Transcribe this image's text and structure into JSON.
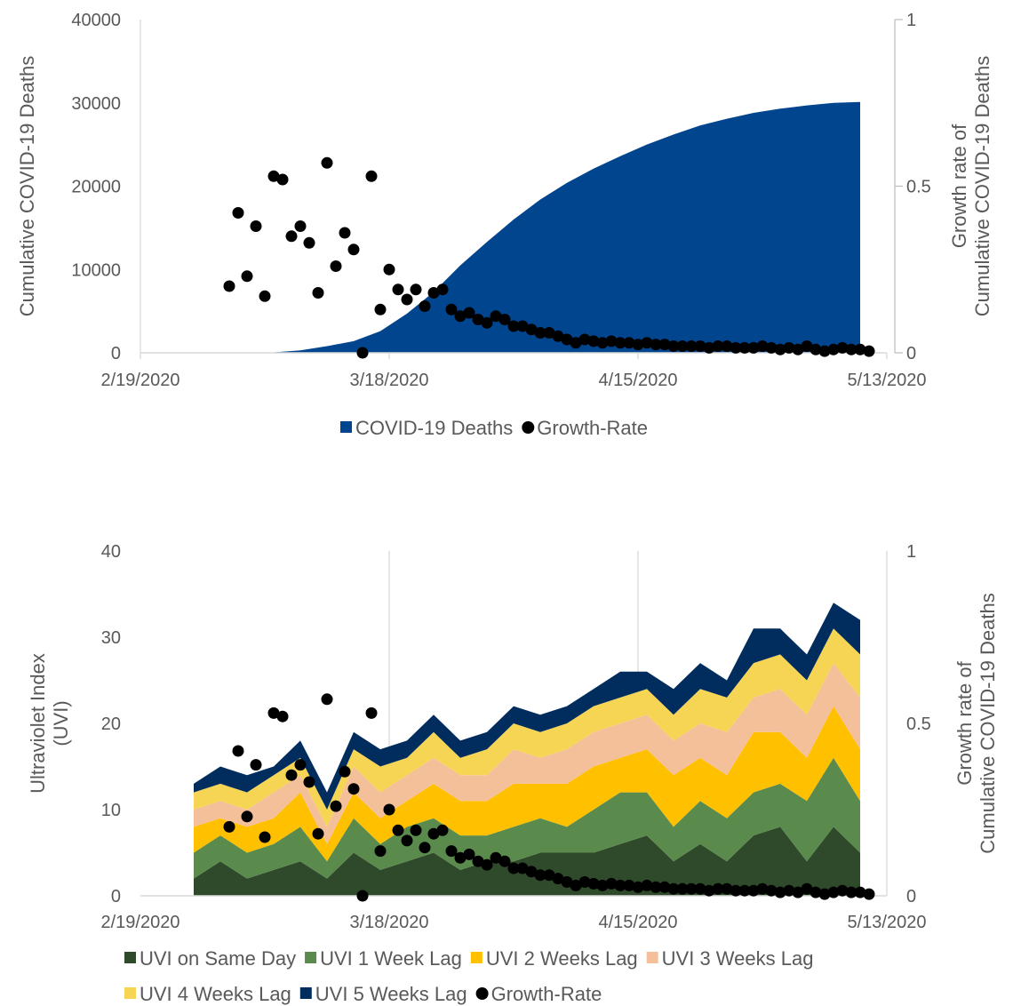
{
  "charts": [
    {
      "type": "area",
      "x_ticks": [
        "2/19/2020",
        "3/18/2020",
        "4/15/2020",
        "5/13/2020"
      ],
      "y_left_ticks": [
        "0",
        "10000",
        "20000",
        "30000",
        "40000"
      ],
      "y_right_ticks": [
        "0",
        "0.5",
        "1"
      ],
      "ylabel_left": "Cumulative COVID-19 Deaths",
      "ylabel_right": [
        "Growth rate of",
        "Cumulative COVID-19 Deaths"
      ],
      "legend": [
        {
          "label": "COVID-19 Deaths",
          "marker": "square",
          "color": "#00458e"
        },
        {
          "label": "Growth-Rate",
          "marker": "circle",
          "color": "#000000"
        }
      ]
    },
    {
      "type": "area",
      "x_ticks": [
        "2/19/2020",
        "3/18/2020",
        "4/15/2020",
        "5/13/2020"
      ],
      "y_left_ticks": [
        "0",
        "10",
        "20",
        "30",
        "40"
      ],
      "y_right_ticks": [
        "0",
        "0.5",
        "1"
      ],
      "ylabel_left": [
        "Ultraviolet Index",
        "(UVI)"
      ],
      "ylabel_right": [
        "Growth rate of",
        "Cumulative COVID-19 Deaths"
      ],
      "legend": [
        {
          "label": "UVI on Same Day",
          "marker": "square",
          "color": "#2f4a2a"
        },
        {
          "label": "UVI 1 Week Lag",
          "marker": "square",
          "color": "#5a8a4c"
        },
        {
          "label": "UVI 2 Weeks Lag",
          "marker": "square",
          "color": "#ffc000"
        },
        {
          "label": "UVI 3 Weeks Lag",
          "marker": "square",
          "color": "#f4c09a"
        },
        {
          "label": "UVI 4 Weeks Lag",
          "marker": "square",
          "color": "#f6d555"
        },
        {
          "label": "UVI 5 Weeks Lag",
          "marker": "square",
          "color": "#002d5e"
        },
        {
          "label": "Growth-Rate",
          "marker": "circle",
          "color": "#000000"
        }
      ]
    }
  ],
  "chart_data": [
    {
      "type": "area",
      "x_range": [
        "2020-02-19",
        "2020-05-13"
      ],
      "ylim_left": [
        0,
        40000
      ],
      "ylim_right": [
        0,
        1
      ],
      "grid": false,
      "legend_position": "bottom",
      "series": [
        {
          "name": "COVID-19 Deaths",
          "type": "area",
          "axis": "left",
          "color": "#00458e",
          "x": [
            "2020-02-29",
            "2020-03-05",
            "2020-03-08",
            "2020-03-11",
            "2020-03-14",
            "2020-03-17",
            "2020-03-20",
            "2020-03-23",
            "2020-03-26",
            "2020-03-29",
            "2020-04-01",
            "2020-04-04",
            "2020-04-07",
            "2020-04-10",
            "2020-04-13",
            "2020-04-16",
            "2020-04-19",
            "2020-04-22",
            "2020-04-25",
            "2020-04-28",
            "2020-05-01",
            "2020-05-04",
            "2020-05-07",
            "2020-05-10"
          ],
          "values": [
            0,
            50,
            300,
            800,
            1400,
            2600,
            4700,
            7300,
            10500,
            13300,
            16000,
            18400,
            20400,
            22100,
            23600,
            25000,
            26200,
            27300,
            28100,
            28800,
            29300,
            29700,
            30000,
            30100
          ]
        },
        {
          "name": "Growth-Rate",
          "type": "scatter",
          "axis": "right",
          "color": "#000000",
          "x": [
            "2020-02-29",
            "2020-03-01",
            "2020-03-02",
            "2020-03-03",
            "2020-03-04",
            "2020-03-05",
            "2020-03-06",
            "2020-03-07",
            "2020-03-08",
            "2020-03-09",
            "2020-03-10",
            "2020-03-11",
            "2020-03-12",
            "2020-03-13",
            "2020-03-14",
            "2020-03-15",
            "2020-03-16",
            "2020-03-17",
            "2020-03-18",
            "2020-03-19",
            "2020-03-20",
            "2020-03-21",
            "2020-03-22",
            "2020-03-23",
            "2020-03-24",
            "2020-03-25",
            "2020-03-26",
            "2020-03-27",
            "2020-03-28",
            "2020-03-29",
            "2020-03-30",
            "2020-03-31",
            "2020-04-01",
            "2020-04-02",
            "2020-04-03",
            "2020-04-04",
            "2020-04-05",
            "2020-04-06",
            "2020-04-07",
            "2020-04-08",
            "2020-04-09",
            "2020-04-10",
            "2020-04-11",
            "2020-04-12",
            "2020-04-13",
            "2020-04-14",
            "2020-04-15",
            "2020-04-16",
            "2020-04-17",
            "2020-04-18",
            "2020-04-19",
            "2020-04-20",
            "2020-04-21",
            "2020-04-22",
            "2020-04-23",
            "2020-04-24",
            "2020-04-25",
            "2020-04-26",
            "2020-04-27",
            "2020-04-28",
            "2020-04-29",
            "2020-04-30",
            "2020-05-01",
            "2020-05-02",
            "2020-05-03",
            "2020-05-04",
            "2020-05-05",
            "2020-05-06",
            "2020-05-07",
            "2020-05-08",
            "2020-05-09",
            "2020-05-10",
            "2020-05-11"
          ],
          "values": [
            0.2,
            0.42,
            0.23,
            0.38,
            0.17,
            0.53,
            0.52,
            0.35,
            0.38,
            0.33,
            0.18,
            0.57,
            0.26,
            0.36,
            0.31,
            0.0,
            0.53,
            0.13,
            0.25,
            0.19,
            0.16,
            0.19,
            0.14,
            0.18,
            0.19,
            0.13,
            0.11,
            0.12,
            0.1,
            0.09,
            0.11,
            0.1,
            0.08,
            0.08,
            0.07,
            0.06,
            0.06,
            0.05,
            0.04,
            0.03,
            0.04,
            0.035,
            0.03,
            0.035,
            0.03,
            0.03,
            0.025,
            0.03,
            0.025,
            0.025,
            0.02,
            0.02,
            0.02,
            0.02,
            0.015,
            0.02,
            0.02,
            0.015,
            0.015,
            0.015,
            0.02,
            0.015,
            0.01,
            0.015,
            0.01,
            0.02,
            0.01,
            0.005,
            0.01,
            0.015,
            0.01,
            0.01,
            0.005
          ]
        }
      ]
    },
    {
      "type": "area",
      "x_range": [
        "2020-02-19",
        "2020-05-13"
      ],
      "ylim_left": [
        0,
        40
      ],
      "ylim_right": [
        0,
        1
      ],
      "grid": true,
      "stacked": true,
      "legend_position": "bottom",
      "x": [
        "2020-02-25",
        "2020-02-28",
        "2020-03-02",
        "2020-03-05",
        "2020-03-08",
        "2020-03-11",
        "2020-03-14",
        "2020-03-17",
        "2020-03-20",
        "2020-03-23",
        "2020-03-26",
        "2020-03-29",
        "2020-04-01",
        "2020-04-04",
        "2020-04-07",
        "2020-04-10",
        "2020-04-13",
        "2020-04-16",
        "2020-04-19",
        "2020-04-22",
        "2020-04-25",
        "2020-04-28",
        "2020-05-01",
        "2020-05-04",
        "2020-05-07",
        "2020-05-10"
      ],
      "series": [
        {
          "name": "UVI on Same Day",
          "color": "#2f4a2a",
          "values": [
            2,
            4,
            2,
            3,
            4,
            2,
            5,
            3,
            4,
            5,
            3,
            4,
            4,
            5,
            5,
            5,
            6,
            7,
            4,
            6,
            4,
            7,
            8,
            4,
            8,
            5
          ]
        },
        {
          "name": "UVI 1 Week Lag",
          "color": "#5a8a4c",
          "values": [
            3,
            3,
            3,
            3,
            4,
            2,
            4,
            3,
            4,
            4,
            4,
            3,
            4,
            4,
            3,
            5,
            6,
            5,
            4,
            5,
            5,
            5,
            5,
            7,
            8,
            6
          ]
        },
        {
          "name": "UVI 2 Weeks Lag",
          "color": "#ffc000",
          "values": [
            3,
            2,
            3,
            3,
            4,
            2,
            3,
            3,
            3,
            4,
            4,
            4,
            5,
            4,
            5,
            5,
            4,
            5,
            6,
            5,
            5,
            7,
            6,
            5,
            6,
            6
          ]
        },
        {
          "name": "UVI 3 Weeks Lag",
          "color": "#f4c09a",
          "values": [
            2,
            2,
            2,
            3,
            2,
            2,
            3,
            3,
            3,
            3,
            3,
            3,
            4,
            3,
            4,
            4,
            4,
            4,
            4,
            4,
            5,
            4,
            5,
            5,
            5,
            6
          ]
        },
        {
          "name": "UVI 4 Weeks Lag",
          "color": "#f6d555",
          "values": [
            2,
            2,
            2,
            2,
            2,
            2,
            2,
            3,
            2,
            3,
            2,
            3,
            3,
            3,
            3,
            3,
            3,
            3,
            3,
            4,
            4,
            4,
            4,
            4,
            4,
            5
          ]
        },
        {
          "name": "UVI 5 Weeks Lag",
          "color": "#002d5e",
          "values": [
            1,
            2,
            2,
            1,
            2,
            2,
            2,
            2,
            2,
            2,
            2,
            2,
            2,
            2,
            2,
            2,
            3,
            2,
            3,
            3,
            2,
            4,
            3,
            3,
            3,
            4
          ]
        }
      ],
      "growth_rate": {
        "name": "Growth-Rate",
        "axis": "right",
        "color": "#000000",
        "x": [
          "2020-02-29",
          "2020-03-01",
          "2020-03-02",
          "2020-03-03",
          "2020-03-04",
          "2020-03-05",
          "2020-03-06",
          "2020-03-07",
          "2020-03-08",
          "2020-03-09",
          "2020-03-10",
          "2020-03-11",
          "2020-03-12",
          "2020-03-13",
          "2020-03-14",
          "2020-03-15",
          "2020-03-16",
          "2020-03-17",
          "2020-03-18",
          "2020-03-19",
          "2020-03-20",
          "2020-03-21",
          "2020-03-22",
          "2020-03-23",
          "2020-03-24",
          "2020-03-25",
          "2020-03-26",
          "2020-03-27",
          "2020-03-28",
          "2020-03-29",
          "2020-03-30",
          "2020-03-31",
          "2020-04-01",
          "2020-04-02",
          "2020-04-03",
          "2020-04-04",
          "2020-04-05",
          "2020-04-06",
          "2020-04-07",
          "2020-04-08",
          "2020-04-09",
          "2020-04-10",
          "2020-04-11",
          "2020-04-12",
          "2020-04-13",
          "2020-04-14",
          "2020-04-15",
          "2020-04-16",
          "2020-04-17",
          "2020-04-18",
          "2020-04-19",
          "2020-04-20",
          "2020-04-21",
          "2020-04-22",
          "2020-04-23",
          "2020-04-24",
          "2020-04-25",
          "2020-04-26",
          "2020-04-27",
          "2020-04-28",
          "2020-04-29",
          "2020-04-30",
          "2020-05-01",
          "2020-05-02",
          "2020-05-03",
          "2020-05-04",
          "2020-05-05",
          "2020-05-06",
          "2020-05-07",
          "2020-05-08",
          "2020-05-09",
          "2020-05-10",
          "2020-05-11"
        ],
        "values": [
          0.2,
          0.42,
          0.23,
          0.38,
          0.17,
          0.53,
          0.52,
          0.35,
          0.38,
          0.33,
          0.18,
          0.57,
          0.26,
          0.36,
          0.31,
          0.0,
          0.53,
          0.13,
          0.25,
          0.19,
          0.16,
          0.19,
          0.14,
          0.18,
          0.19,
          0.13,
          0.11,
          0.12,
          0.1,
          0.09,
          0.11,
          0.1,
          0.08,
          0.08,
          0.07,
          0.06,
          0.06,
          0.05,
          0.04,
          0.03,
          0.04,
          0.035,
          0.03,
          0.035,
          0.03,
          0.03,
          0.025,
          0.03,
          0.025,
          0.025,
          0.02,
          0.02,
          0.02,
          0.02,
          0.015,
          0.02,
          0.02,
          0.015,
          0.015,
          0.015,
          0.02,
          0.015,
          0.01,
          0.015,
          0.01,
          0.02,
          0.01,
          0.005,
          0.01,
          0.015,
          0.01,
          0.01,
          0.005
        ]
      }
    }
  ]
}
